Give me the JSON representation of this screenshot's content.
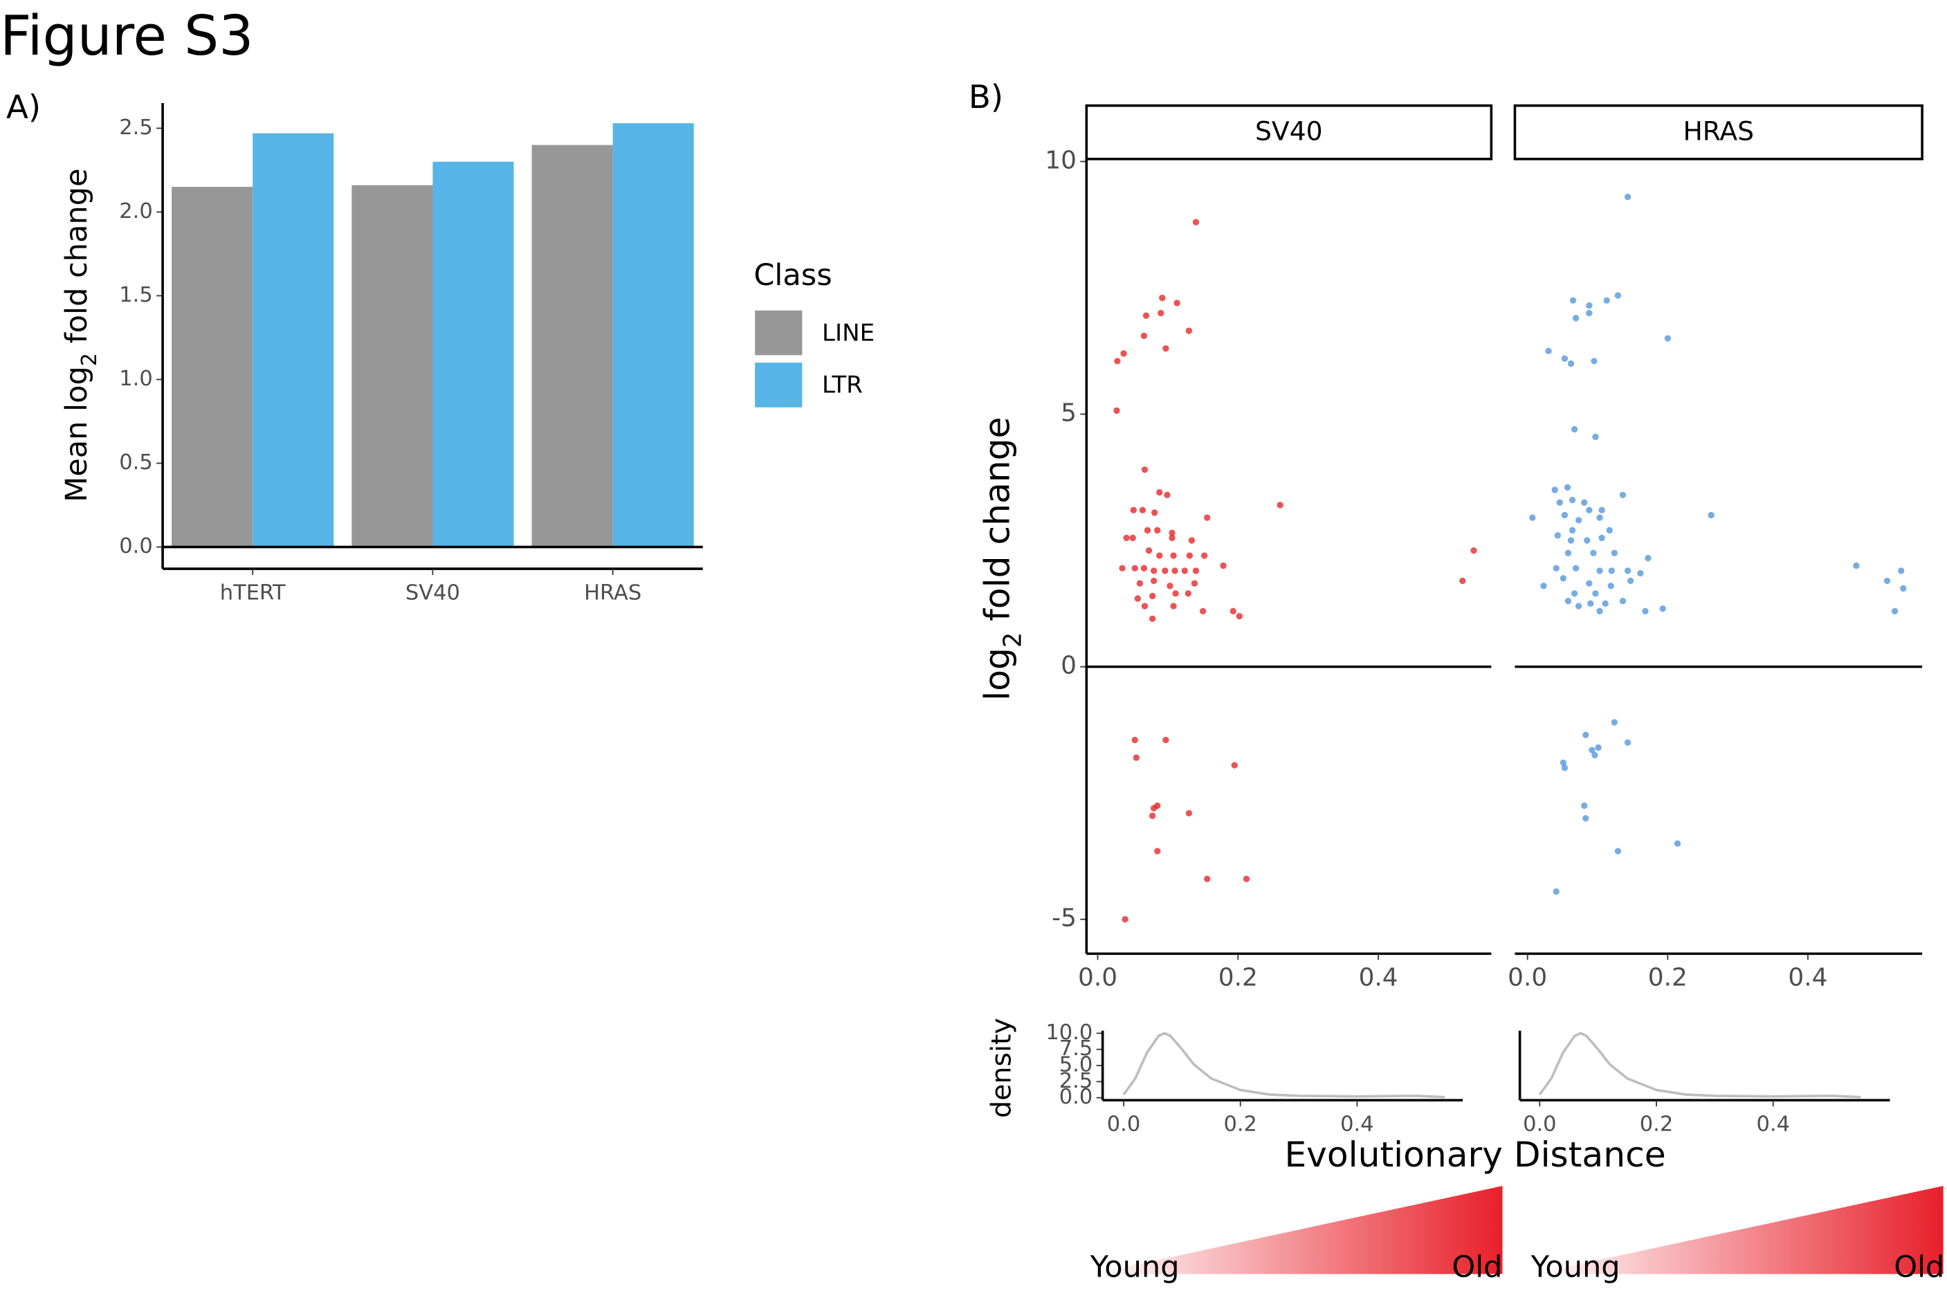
{
  "figure_title": "Figure S3",
  "chart_data": [
    {
      "type": "bar",
      "panel_label": "A)",
      "ylabel": [
        "Mean log",
        "2",
        " fold change"
      ],
      "categories": [
        "hTERT",
        "SV40",
        "HRAS"
      ],
      "series": [
        {
          "name": "LINE",
          "color": "#979797",
          "values": [
            2.15,
            2.16,
            2.4
          ]
        },
        {
          "name": "LTR",
          "color": "#56b4e6",
          "values": [
            2.47,
            2.3,
            2.53
          ]
        }
      ],
      "legend_title": "Class",
      "ylim": [
        -0.13,
        2.65
      ],
      "yticks": [
        {
          "value": 0,
          "label": "0.0"
        },
        0.5,
        {
          "value": 1,
          "label": "1.0"
        },
        1.5,
        {
          "value": 2,
          "label": "2.0"
        },
        2.5
      ]
    },
    {
      "type": "scatter",
      "panel_label": "B)",
      "facet": "SV40",
      "ylabel": [
        "log",
        "2",
        " fold change"
      ],
      "color": "#e41a1c",
      "y_axis_line": true,
      "xlim": [
        -0.016,
        0.561
      ],
      "ylim": [
        -5.68,
        10.05
      ],
      "xticks": [
        {
          "value": 0,
          "label": "0.0"
        },
        0.2,
        0.4
      ],
      "yticks": [
        -5,
        0,
        5,
        10
      ],
      "x": [
        0.14,
        0.092,
        0.113,
        0.069,
        0.09,
        0.066,
        0.13,
        0.097,
        0.037,
        0.028,
        0.027,
        0.067,
        0.088,
        0.099,
        0.26,
        0.051,
        0.064,
        0.081,
        0.156,
        0.041,
        0.05,
        0.071,
        0.085,
        0.106,
        0.106,
        0.134,
        0.536,
        0.073,
        0.088,
        0.108,
        0.131,
        0.152,
        0.035,
        0.053,
        0.066,
        0.08,
        0.096,
        0.11,
        0.124,
        0.14,
        0.179,
        0.52,
        0.06,
        0.08,
        0.103,
        0.138,
        0.057,
        0.078,
        0.111,
        0.129,
        0.067,
        0.108,
        0.15,
        0.193,
        0.202,
        0.078,
        0.053,
        0.097,
        0.055,
        0.195,
        0.085,
        0.08,
        0.078,
        0.13,
        0.085,
        0.156,
        0.212,
        0.039
      ],
      "values": [
        8.8,
        7.3,
        7.2,
        6.95,
        7.0,
        6.55,
        6.65,
        6.3,
        6.2,
        6.05,
        5.07,
        3.9,
        3.45,
        3.4,
        3.2,
        3.1,
        3.1,
        3.05,
        2.95,
        2.55,
        2.55,
        2.7,
        2.7,
        2.65,
        2.55,
        2.5,
        2.3,
        2.3,
        2.2,
        2.2,
        2.2,
        2.2,
        1.95,
        1.95,
        1.95,
        1.9,
        1.9,
        1.9,
        1.9,
        1.9,
        2.0,
        1.7,
        1.65,
        1.7,
        1.6,
        1.65,
        1.35,
        1.4,
        1.45,
        1.45,
        1.2,
        1.2,
        1.1,
        1.1,
        1.0,
        0.95,
        -1.45,
        -1.45,
        -1.8,
        -1.95,
        -2.75,
        -2.8,
        -2.95,
        -2.9,
        -3.65,
        -4.2,
        -4.2,
        -5.0
      ]
    },
    {
      "type": "scatter",
      "facet": "HRAS",
      "color": "#4a90d9",
      "y_axis_line": false,
      "xlim": [
        -0.018,
        0.563
      ],
      "ylim": [
        -5.68,
        10.05
      ],
      "xticks": [
        {
          "value": 0,
          "label": "0.0"
        },
        0.2,
        0.4
      ],
      "x": [
        0.143,
        0.129,
        0.113,
        0.065,
        0.088,
        0.088,
        0.069,
        0.2,
        0.03,
        0.053,
        0.062,
        0.095,
        0.067,
        0.097,
        0.057,
        0.039,
        0.136,
        0.046,
        0.064,
        0.081,
        0.007,
        0.088,
        0.106,
        0.262,
        0.053,
        0.073,
        0.103,
        0.064,
        0.117,
        0.043,
        0.062,
        0.085,
        0.106,
        0.058,
        0.094,
        0.124,
        0.172,
        0.041,
        0.069,
        0.103,
        0.12,
        0.143,
        0.161,
        0.469,
        0.051,
        0.088,
        0.119,
        0.147,
        0.023,
        0.067,
        0.097,
        0.513,
        0.533,
        0.536,
        0.058,
        0.09,
        0.111,
        0.136,
        0.193,
        0.103,
        0.524,
        0.168,
        0.073,
        0.124,
        0.083,
        0.101,
        0.143,
        0.051,
        0.053,
        0.092,
        0.096,
        0.081,
        0.083,
        0.214,
        0.129,
        0.041
      ],
      "values": [
        9.3,
        7.35,
        7.25,
        7.25,
        7.15,
        7.0,
        6.9,
        6.5,
        6.25,
        6.1,
        6.0,
        6.05,
        4.7,
        4.55,
        3.55,
        3.5,
        3.4,
        3.25,
        3.3,
        3.25,
        2.95,
        3.1,
        3.1,
        3.0,
        3.0,
        2.9,
        2.95,
        2.7,
        2.7,
        2.6,
        2.5,
        2.5,
        2.55,
        2.25,
        2.25,
        2.25,
        2.15,
        1.95,
        1.95,
        1.9,
        1.9,
        1.9,
        1.85,
        2.0,
        1.75,
        1.65,
        1.6,
        1.7,
        1.6,
        1.45,
        1.45,
        1.7,
        1.9,
        1.55,
        1.3,
        1.25,
        1.25,
        1.3,
        1.15,
        1.1,
        1.1,
        1.1,
        1.2,
        -1.1,
        -1.35,
        -1.6,
        -1.5,
        -1.9,
        -2.0,
        -1.65,
        -1.75,
        -2.75,
        -3.0,
        -3.5,
        -3.65,
        -4.45
      ]
    },
    {
      "type": "line",
      "ylabel": "density",
      "xlabel": "Evolutionary Distance",
      "color": "#bdbdbd",
      "y_axis_line": true,
      "xlim": [
        -0.036,
        0.581
      ],
      "ylim": [
        -0.38,
        10.4
      ],
      "xticks": [
        {
          "value": 0,
          "label": "0.0"
        },
        0.2,
        0.4
      ],
      "yticks": [
        {
          "value": 0,
          "label": "0.0"
        },
        2.5,
        {
          "value": 5,
          "label": "5.0"
        },
        7.5,
        {
          "value": 10,
          "label": "10.0"
        }
      ],
      "x": [
        0,
        0.02,
        0.04,
        0.06,
        0.07,
        0.08,
        0.1,
        0.12,
        0.15,
        0.2,
        0.25,
        0.3,
        0.4,
        0.5,
        0.55
      ],
      "values": [
        0.5,
        3,
        7,
        9.6,
        10,
        9.6,
        7.5,
        5.2,
        3,
        1.2,
        0.5,
        0.3,
        0.2,
        0.3,
        0.1
      ]
    },
    {
      "type": "line",
      "color": "#bdbdbd",
      "y_axis_line": true,
      "xlim": [
        -0.034,
        0.6
      ],
      "ylim": [
        -0.38,
        10.4
      ],
      "xticks": [
        {
          "value": 0,
          "label": "0.0"
        },
        0.2,
        0.4
      ],
      "x": [
        0,
        0.02,
        0.04,
        0.06,
        0.07,
        0.08,
        0.1,
        0.12,
        0.15,
        0.2,
        0.25,
        0.3,
        0.4,
        0.5,
        0.55
      ],
      "values": [
        0.5,
        3,
        7,
        9.6,
        10,
        9.6,
        7.5,
        5.2,
        3,
        1.2,
        0.5,
        0.3,
        0.2,
        0.3,
        0.1
      ]
    }
  ],
  "gradient_scales": [
    {
      "low": "Young",
      "high": "Old"
    },
    {
      "low": "Young",
      "high": "Old"
    }
  ]
}
